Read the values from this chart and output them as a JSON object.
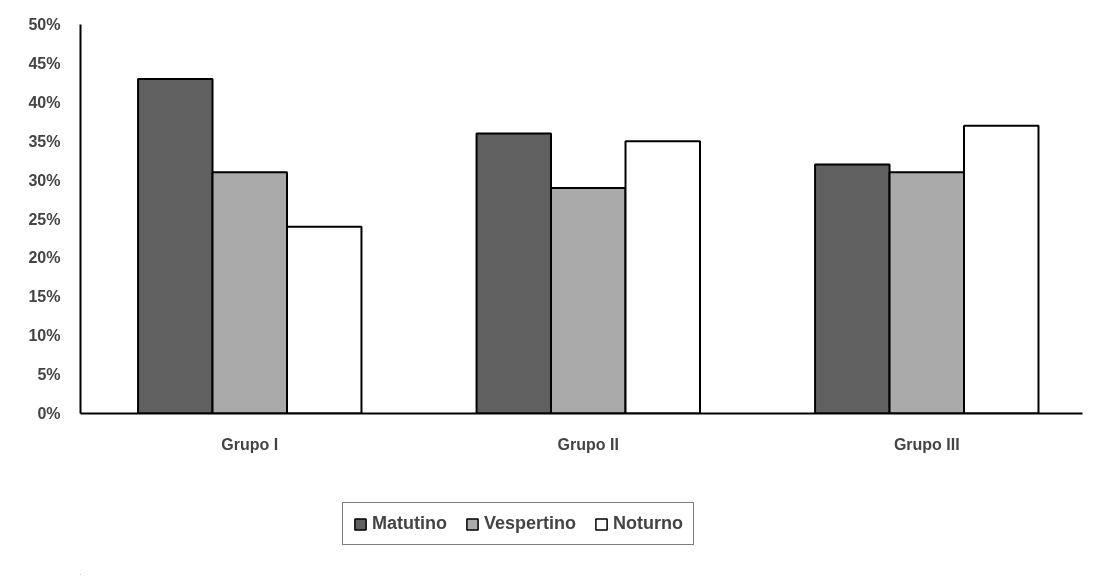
{
  "chart_data": {
    "type": "bar",
    "categories": [
      "Grupo I",
      "Grupo II",
      "Grupo III"
    ],
    "series": [
      {
        "name": "Matutino",
        "color": "#606060",
        "values": [
          43,
          36,
          32
        ]
      },
      {
        "name": "Vespertino",
        "color": "#aaaaaa",
        "values": [
          31,
          29,
          31
        ]
      },
      {
        "name": "Noturno",
        "color": "#ffffff",
        "values": [
          24,
          35,
          37
        ]
      }
    ],
    "ylim": [
      0,
      50
    ],
    "yticks": [
      {
        "value": 0,
        "label": "0%"
      },
      {
        "value": 5,
        "label": "5%"
      },
      {
        "value": 10,
        "label": "10%"
      },
      {
        "value": 15,
        "label": "15%"
      },
      {
        "value": 20,
        "label": "20%"
      },
      {
        "value": 25,
        "label": "25%"
      },
      {
        "value": 30,
        "label": "30%"
      },
      {
        "value": 35,
        "label": "35%"
      },
      {
        "value": 40,
        "label": "40%"
      },
      {
        "value": 45,
        "label": "45%"
      },
      {
        "value": 50,
        "label": "50%"
      }
    ],
    "grid": false,
    "legend": "bottom"
  }
}
